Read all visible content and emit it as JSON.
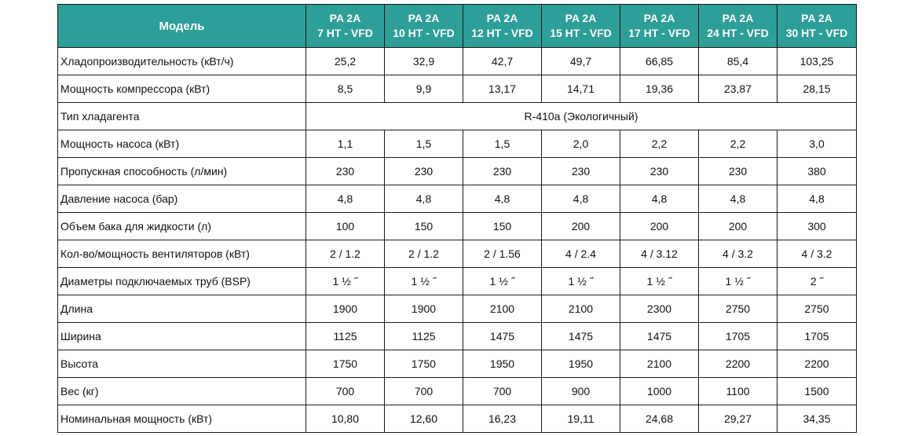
{
  "header": {
    "model_label": "Модель",
    "models": [
      {
        "line1": "PA 2A",
        "line2": "7 HT - VFD"
      },
      {
        "line1": "PA 2A",
        "line2": "10 HT - VFD"
      },
      {
        "line1": "PA 2A",
        "line2": "12 HT - VFD"
      },
      {
        "line1": "PA 2A",
        "line2": "15 HT - VFD"
      },
      {
        "line1": "PA 2A",
        "line2": "17 HT - VFD"
      },
      {
        "line1": "PA 2A",
        "line2": "24 HT - VFD"
      },
      {
        "line1": "PA 2A",
        "line2": "30 HT - VFD"
      }
    ]
  },
  "rows": [
    {
      "param": "Хладопроизводительность (кВт/ч)",
      "values": [
        "25,2",
        "32,9",
        "42,7",
        "49,7",
        "66,85",
        "85,4",
        "103,25"
      ]
    },
    {
      "param": "Мощность компрессора (кВт)",
      "values": [
        "8,5",
        "9,9",
        "13,17",
        "14,71",
        "19,36",
        "23,87",
        "28,15"
      ]
    },
    {
      "param": "Тип хладагента",
      "span_value": "R-410a (Экологичный)"
    },
    {
      "param": "Мощность насоса (кВт)",
      "values": [
        "1,1",
        "1,5",
        "1,5",
        "2,0",
        "2,2",
        "2,2",
        "3,0"
      ]
    },
    {
      "param": "Пропускная способность (л/мин)",
      "values": [
        "230",
        "230",
        "230",
        "230",
        "230",
        "230",
        "380"
      ]
    },
    {
      "param": "Давление насоса (бар)",
      "values": [
        "4,8",
        "4,8",
        "4,8",
        "4,8",
        "4,8",
        "4,8",
        "4,8"
      ]
    },
    {
      "param": "Объем бака для жидкости (л)",
      "values": [
        "100",
        "150",
        "150",
        "200",
        "200",
        "200",
        "300"
      ]
    },
    {
      "param": "Кол-во/мощность вентиляторов (кВт)",
      "values": [
        "2 / 1.2",
        "2 / 1.2",
        "2 / 1.56",
        "4 / 2.4",
        "4 / 3.12",
        "4 / 3.2",
        "4 / 3.2"
      ]
    },
    {
      "param": "Диаметры подключаемых труб (BSP)",
      "values": [
        "1 ½ ˝",
        "1 ½ ˝",
        "1 ½ ˝",
        "1 ½ ˝",
        "1 ½ ˝",
        "1 ½ ˝",
        "2 ˝"
      ]
    },
    {
      "param": "Длина",
      "values": [
        "1900",
        "1900",
        "2100",
        "2100",
        "2300",
        "2750",
        "2750"
      ]
    },
    {
      "param": "Ширина",
      "values": [
        "1125",
        "1125",
        "1475",
        "1475",
        "1475",
        "1705",
        "1705"
      ]
    },
    {
      "param": "Высота",
      "values": [
        "1750",
        "1750",
        "1950",
        "1950",
        "2100",
        "2200",
        "2200"
      ]
    },
    {
      "param": "Вес (кг)",
      "values": [
        "700",
        "700",
        "700",
        "900",
        "1000",
        "1100",
        "1500"
      ]
    },
    {
      "param": "Номинальная мощность (кВт)",
      "values": [
        "10,80",
        "12,60",
        "16,23",
        "19,11",
        "24,68",
        "29,27",
        "34,35"
      ]
    }
  ]
}
